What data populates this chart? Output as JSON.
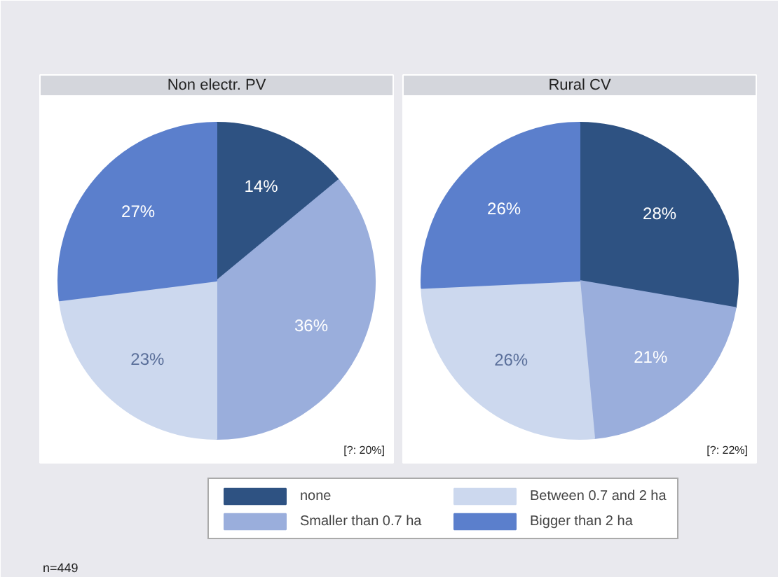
{
  "chart_data": [
    {
      "type": "pie",
      "title": "Non electr. PV",
      "categories": [
        "none",
        "Smaller than 0.7 ha",
        "Between 0.7 and 2 ha",
        "Bigger than 2 ha"
      ],
      "values": [
        14,
        36,
        23,
        27
      ],
      "value_labels": [
        "14%",
        "36%",
        "23%",
        "27%"
      ],
      "colors": [
        "#2e5282",
        "#9aaedc",
        "#ccd8ee",
        "#5b7fcc"
      ],
      "legend": "bottom",
      "annotations": [
        "[?: 20%]",
        "n=449"
      ]
    },
    {
      "type": "pie",
      "title": "Rural CV",
      "values": [
        28,
        21,
        26,
        26
      ],
      "value_labels": [
        "28%",
        "21%",
        "26%",
        "26%"
      ],
      "colors": [
        "#2e5282",
        "#9aaedc",
        "#ccd8ee",
        "#5b7fcc"
      ],
      "annotations": [
        "[?: 22%]"
      ]
    }
  ]
}
